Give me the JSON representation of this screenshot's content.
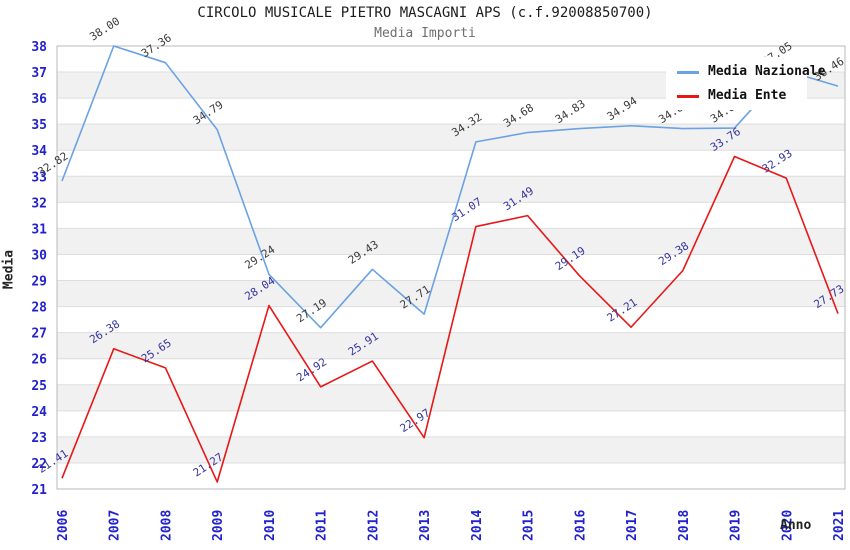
{
  "header": {
    "title": "CIRCOLO MUSICALE PIETRO MASCAGNI APS (c.f.92008850700)",
    "subtitle": "Media Importi"
  },
  "axes": {
    "y_label": "Media",
    "x_label": "Anno"
  },
  "legend": {
    "position": "top-right"
  },
  "colors": {
    "national_line": "#6BA2E2",
    "entity_line": "#E81717",
    "tick_label": "#2222CC",
    "national_point_label": "#3A3A3A",
    "entity_point_label": "#3333A0",
    "band_fill": "#F1F1F1",
    "gridline": "#DEDEDE",
    "plot_border": "#B9B9B9"
  },
  "chart_data": {
    "type": "line",
    "title": "CIRCOLO MUSICALE PIETRO MASCAGNI APS (c.f.92008850700)",
    "subtitle": "Media Importi",
    "xlabel": "Anno",
    "ylabel": "Media",
    "ylim": [
      21,
      38
    ],
    "y_tick_step": 1,
    "grid": "horizontal-gridlines-with-alternating-bands",
    "legend_position": "top-right",
    "categories": [
      "2006",
      "2007",
      "2008",
      "2009",
      "2010",
      "2011",
      "2012",
      "2013",
      "2014",
      "2015",
      "2016",
      "2017",
      "2018",
      "2019",
      "2020",
      "2021"
    ],
    "series": [
      {
        "name": "Media Nazionale",
        "color": "#6BA2E2",
        "label_color": "#3A3A3A",
        "values": [
          32.82,
          38.0,
          37.36,
          34.79,
          29.24,
          27.19,
          29.43,
          27.71,
          34.32,
          34.68,
          34.83,
          34.94,
          34.83,
          34.85,
          37.05,
          36.46
        ]
      },
      {
        "name": "Media Ente",
        "color": "#E81717",
        "label_color": "#3333A0",
        "values": [
          21.41,
          26.38,
          25.65,
          21.27,
          28.04,
          24.92,
          25.91,
          22.97,
          31.07,
          31.49,
          29.19,
          27.21,
          29.38,
          33.76,
          32.93,
          27.73
        ]
      }
    ]
  }
}
